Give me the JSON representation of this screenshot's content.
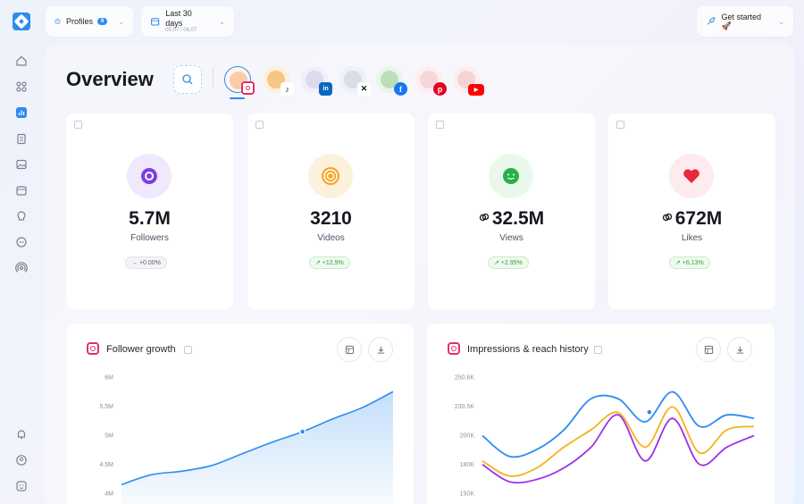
{
  "topbar": {
    "profiles_label": "Profiles",
    "profiles_count": "6",
    "period_label": "Last 30 days",
    "period_range": "05.07 / 06.07",
    "get_started_label": "Get started 🚀"
  },
  "sidebar": {
    "items": [
      {
        "icon": "home-icon"
      },
      {
        "icon": "grid-icon"
      },
      {
        "icon": "analytics-icon",
        "active": true
      },
      {
        "icon": "clipboard-icon"
      },
      {
        "icon": "image-icon"
      },
      {
        "icon": "calendar-icon"
      },
      {
        "icon": "lightbulb-icon"
      },
      {
        "icon": "chat-icon"
      },
      {
        "icon": "broadcast-icon"
      }
    ],
    "bottom": [
      {
        "icon": "bell-icon"
      },
      {
        "icon": "user-icon"
      },
      {
        "icon": "smiley-icon"
      }
    ]
  },
  "overview": {
    "title": "Overview",
    "platforms": [
      {
        "name": "instagram",
        "color": "#e1306c",
        "active": true
      },
      {
        "name": "tiktok",
        "color": "#111111"
      },
      {
        "name": "linkedin",
        "color": "#0a66c2"
      },
      {
        "name": "x",
        "color": "#111111"
      },
      {
        "name": "facebook",
        "color": "#1877f2"
      },
      {
        "name": "pinterest",
        "color": "#e60023"
      },
      {
        "name": "youtube",
        "color": "#ff0000"
      }
    ]
  },
  "stats": [
    {
      "value": "5.7M",
      "label": "Followers",
      "change": "→ +0.00%",
      "trend": "neutral",
      "color": "#7b3fe4"
    },
    {
      "value": "3210",
      "label": "Videos",
      "change": "↗ +12.9%",
      "trend": "up",
      "color": "#f5a623"
    },
    {
      "value": "32.5M",
      "label": "Views",
      "change": "↗ +2.95%",
      "trend": "up",
      "color": "#27b24a"
    },
    {
      "value": "672M",
      "label": "Likes",
      "change": "↗ +6.13%",
      "trend": "up",
      "color": "#e8283c"
    }
  ],
  "chart_data": [
    {
      "type": "area",
      "title": "Follower growth",
      "yticks": [
        "6M",
        "5.5M",
        "5M",
        "4.5M",
        "4M"
      ],
      "ylim": [
        4,
        6
      ],
      "x": [
        0,
        1,
        2,
        3,
        4,
        5,
        6,
        7,
        8,
        9
      ],
      "values": [
        4.15,
        4.32,
        4.38,
        4.48,
        4.68,
        4.88,
        5.06,
        5.28,
        5.48,
        5.75
      ],
      "highlight_index": 6,
      "color": "#2d8cf0"
    },
    {
      "type": "line",
      "title": "Impressions & reach history",
      "yticks": [
        "250.8K",
        "230.5K",
        "200K",
        "180K",
        "150K"
      ],
      "ylim": [
        150,
        250.8
      ],
      "x": [
        0,
        1,
        2,
        3,
        4,
        5,
        6,
        7,
        8,
        9,
        10
      ],
      "series": [
        {
          "color": "#2d8cf0",
          "values": [
            200,
            182,
            188,
            205,
            232,
            232,
            212,
            238,
            208,
            218,
            215
          ]
        },
        {
          "color": "#f5b21a",
          "values": [
            178,
            165,
            172,
            190,
            205,
            220,
            190,
            225,
            185,
            205,
            208
          ]
        },
        {
          "color": "#9b30e8",
          "values": [
            175,
            160,
            162,
            172,
            190,
            218,
            178,
            215,
            175,
            190,
            200
          ]
        }
      ],
      "highlight_series": 0,
      "highlight_index": 7
    }
  ]
}
